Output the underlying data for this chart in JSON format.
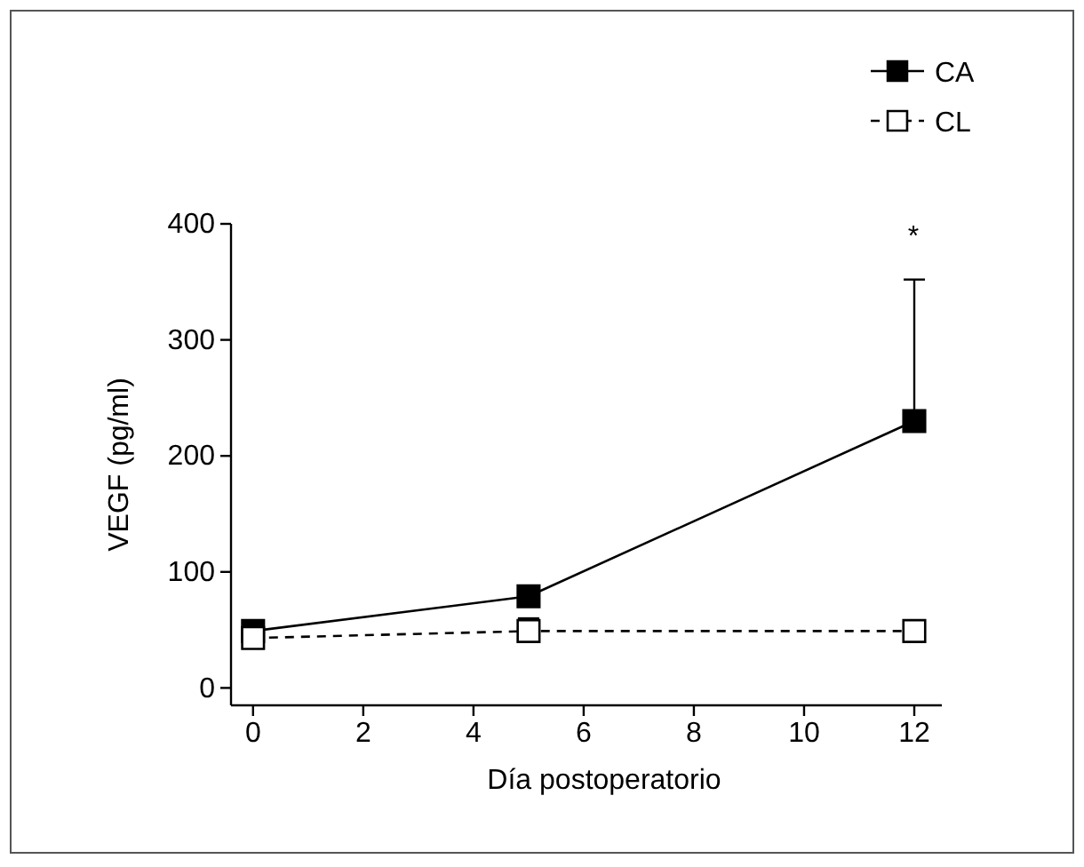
{
  "chart_data": {
    "type": "line",
    "xlabel": "Día postoperatorio",
    "ylabel": "VEGF (pg/ml)",
    "x": [
      0,
      5,
      12
    ],
    "series": [
      {
        "name": "CA",
        "color": "#000000",
        "values": [
          49,
          79,
          230
        ],
        "errors": [
          [
            49,
            56
          ],
          [
            79,
            88
          ],
          [
            230,
            352
          ]
        ],
        "line_style": "solid"
      },
      {
        "name": "CL",
        "color": "#000000",
        "values": [
          43,
          49,
          49
        ],
        "errors": [
          [
            43,
            46
          ],
          [
            49,
            60
          ],
          [
            49,
            57
          ]
        ],
        "line_style": "dashed"
      }
    ],
    "marker": "square",
    "xlim": [
      -0.4,
      12.5
    ],
    "xticks": [
      0,
      2,
      4,
      6,
      8,
      10,
      12
    ],
    "ylim": [
      -15,
      400
    ],
    "yticks": [
      0,
      100,
      200,
      300,
      400
    ],
    "grid": false,
    "legend": "top right",
    "annotations": [
      "*"
    ]
  }
}
